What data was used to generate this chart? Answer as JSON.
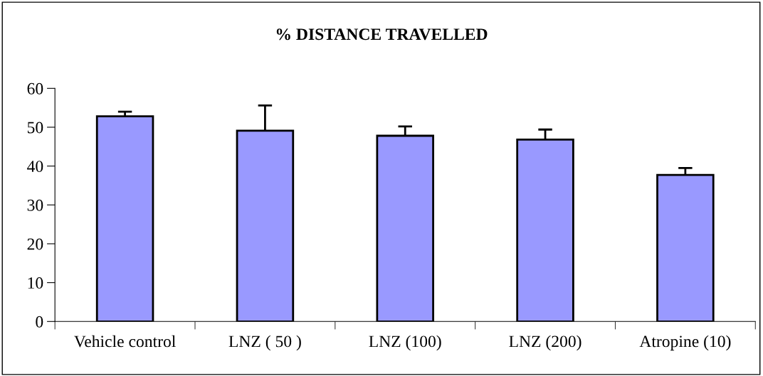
{
  "chart_data": {
    "type": "bar",
    "title": "% DISTANCE TRAVELLED",
    "categories": [
      "Vehicle control",
      "LNZ ( 50 )",
      "LNZ (100)",
      "LNZ (200)",
      "Atropine (10)"
    ],
    "values": [
      52.8,
      49.1,
      47.8,
      46.8,
      37.7
    ],
    "errors": [
      [
        52.8,
        54.0
      ],
      [
        49.1,
        55.6
      ],
      [
        47.8,
        50.2
      ],
      [
        46.8,
        49.4
      ],
      [
        37.7,
        39.5
      ]
    ],
    "color": "#9999ff",
    "ylim": [
      0,
      60
    ],
    "yticks": [
      0,
      10,
      20,
      30,
      40,
      50,
      60
    ],
    "grid": false,
    "legend": false
  }
}
